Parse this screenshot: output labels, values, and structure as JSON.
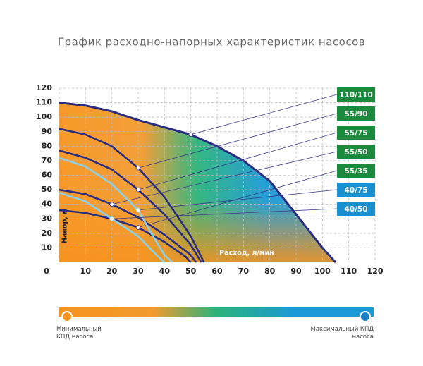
{
  "chart_data": {
    "type": "line",
    "title": "График расходно-напорных характеристик насосов",
    "x_label": "Расход, л/мин",
    "y_label": "Напор, м",
    "xlim": [
      0,
      120
    ],
    "ylim": [
      0,
      120
    ],
    "xticks": [
      0,
      10,
      20,
      30,
      40,
      50,
      60,
      70,
      80,
      90,
      100,
      110,
      120
    ],
    "yticks": [
      10,
      20,
      30,
      40,
      50,
      60,
      70,
      80,
      90,
      100,
      110,
      120
    ],
    "grid": true,
    "series": [
      {
        "name": "110/110",
        "color": "#2a2d80",
        "tag_color": "#1b8a3c",
        "x": [
          0,
          10,
          20,
          30,
          40,
          50,
          60,
          70,
          80,
          90,
          100,
          105
        ],
        "values": [
          110,
          108,
          104,
          98,
          93,
          88,
          80,
          70,
          56,
          33,
          10,
          0
        ]
      },
      {
        "name": "55/90",
        "color": "#2a2d80",
        "tag_color": "#1b8a3c",
        "x": [
          0,
          10,
          20,
          30,
          40,
          50,
          55
        ],
        "values": [
          92,
          88,
          80,
          65,
          45,
          18,
          0
        ]
      },
      {
        "name": "55/75",
        "color": "#2a2d80",
        "tag_color": "#1b8a3c",
        "x": [
          0,
          10,
          20,
          30,
          40,
          50,
          54
        ],
        "values": [
          77,
          72,
          64,
          50,
          33,
          12,
          0
        ]
      },
      {
        "name": "55/50",
        "color": "#2a2d80",
        "tag_color": "#1b8a3c",
        "x": [
          0,
          10,
          20,
          30,
          40,
          50,
          52
        ],
        "values": [
          50,
          47,
          40,
          31,
          19,
          5,
          0
        ]
      },
      {
        "name": "55/35",
        "color": "#2a2d80",
        "tag_color": "#1b8a3c",
        "x": [
          0,
          10,
          20,
          30,
          40,
          48,
          50
        ],
        "values": [
          36,
          34,
          30,
          24,
          14,
          4,
          0
        ]
      },
      {
        "name": "40/75",
        "color": "#8ccfe6",
        "tag_color": "#1a8fd0",
        "x": [
          0,
          10,
          20,
          30,
          35,
          40,
          43
        ],
        "values": [
          72,
          66,
          54,
          36,
          20,
          5,
          0
        ]
      },
      {
        "name": "40/50",
        "color": "#8ccfe6",
        "tag_color": "#1a8fd0",
        "x": [
          0,
          10,
          20,
          30,
          37,
          40
        ],
        "values": [
          48,
          42,
          30,
          18,
          5,
          0
        ]
      }
    ],
    "scale_min_label": "Минимальный КПД насоса",
    "scale_max_label": "Максимальный КПД насоса"
  }
}
